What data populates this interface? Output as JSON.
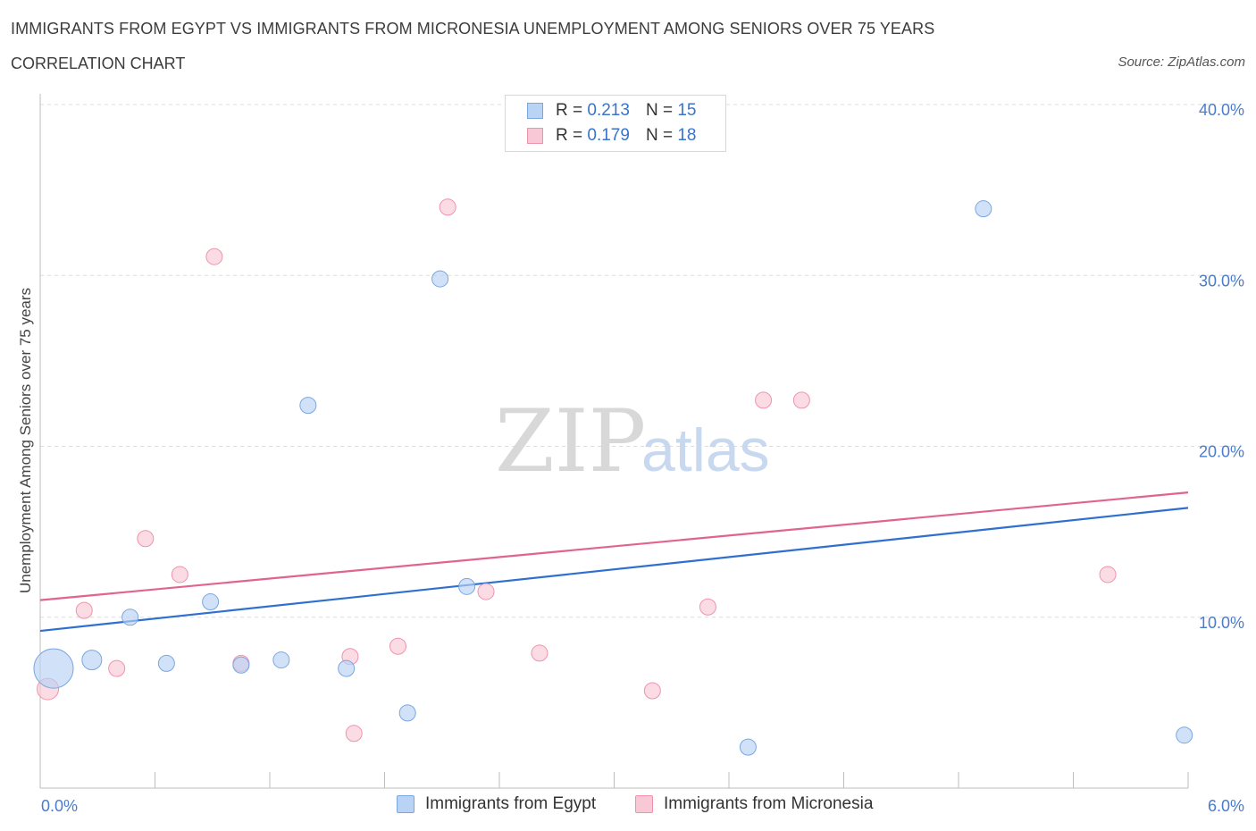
{
  "header": {
    "title": "IMMIGRANTS FROM EGYPT VS IMMIGRANTS FROM MICRONESIA UNEMPLOYMENT AMONG SENIORS OVER 75 YEARS",
    "subtitle": "CORRELATION CHART",
    "source": "Source: ZipAtlas.com"
  },
  "watermark": {
    "zip": "ZIP",
    "atlas": "atlas"
  },
  "legend": {
    "egypt": {
      "r_label": "R =",
      "r_value": "0.213",
      "n_label": "N =",
      "n_value": "15"
    },
    "micronesia": {
      "r_label": "R =",
      "r_value": "0.179",
      "n_label": "N =",
      "n_value": "18"
    }
  },
  "colors": {
    "egypt_fill": "#b9d3f5",
    "egypt_stroke": "#7aa6e0",
    "egypt_line": "#2f6fcf",
    "micronesia_fill": "#f9c8d6",
    "micronesia_stroke": "#ef93ad",
    "micronesia_line": "#e0648e"
  },
  "chart_data": {
    "type": "scatter",
    "title": "IMMIGRANTS FROM EGYPT VS IMMIGRANTS FROM MICRONESIA UNEMPLOYMENT AMONG SENIORS OVER 75 YEARS",
    "xlabel": "",
    "ylabel": "Unemployment Among Seniors over 75 years",
    "xlim": [
      0,
      6
    ],
    "ylim": [
      0,
      40
    ],
    "x_tick_labels": [
      "0.0%",
      "6.0%"
    ],
    "y_ticks": [
      10,
      20,
      30,
      40
    ],
    "y_tick_labels": [
      "10.0%",
      "20.0%",
      "30.0%",
      "40.0%"
    ],
    "grid": true,
    "legend_placement": "top-center",
    "series": [
      {
        "name": "Immigrants from Egypt",
        "x": [
          0.07,
          0.27,
          0.47,
          0.66,
          0.89,
          1.05,
          1.26,
          1.4,
          1.6,
          1.92,
          2.09,
          2.23,
          3.7,
          4.93,
          5.98
        ],
        "y": [
          7.0,
          7.5,
          10.0,
          7.3,
          10.9,
          7.2,
          7.5,
          22.4,
          7.0,
          4.4,
          29.8,
          11.8,
          2.4,
          33.9,
          3.1
        ],
        "sizes": [
          22,
          11,
          9,
          9,
          9,
          9,
          9,
          9,
          9,
          9,
          9,
          9,
          9,
          9,
          9
        ],
        "trend": {
          "x": [
            0,
            6
          ],
          "y": [
            9.2,
            16.4
          ]
        }
      },
      {
        "name": "Immigrants from Micronesia",
        "x": [
          0.04,
          0.23,
          0.4,
          0.55,
          0.73,
          0.91,
          1.05,
          1.62,
          1.64,
          1.87,
          2.13,
          2.33,
          2.61,
          3.2,
          3.49,
          3.78,
          3.98,
          5.58
        ],
        "y": [
          5.8,
          10.4,
          7.0,
          14.6,
          12.5,
          31.1,
          7.3,
          7.7,
          3.2,
          8.3,
          34.0,
          11.5,
          7.9,
          5.7,
          10.6,
          22.7,
          22.7,
          12.5
        ],
        "sizes": [
          12,
          9,
          9,
          9,
          9,
          9,
          9,
          9,
          9,
          9,
          9,
          9,
          9,
          9,
          9,
          9,
          9,
          9
        ],
        "trend": {
          "x": [
            0,
            6
          ],
          "y": [
            11.0,
            17.3
          ]
        }
      }
    ]
  }
}
